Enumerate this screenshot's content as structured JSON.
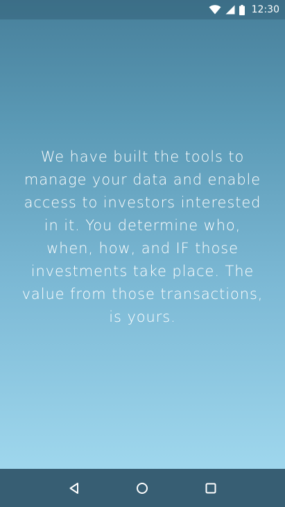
{
  "status_bar": {
    "time": "12:30",
    "icons": [
      "wifi-icon",
      "cellular-signal-icon",
      "battery-icon"
    ]
  },
  "main": {
    "message": "We have built the tools to manage your data and enable access to investors interested in it. You determine who, when, how, and IF those investments take place. The value from those transactions, is yours."
  },
  "nav_bar": {
    "buttons": [
      "back-icon",
      "home-icon",
      "recents-icon"
    ]
  },
  "colors": {
    "gradient_top": "#477f9a",
    "gradient_bottom": "#a6ddf2",
    "nav_bar": "#375e73",
    "text": "#ffffff"
  }
}
